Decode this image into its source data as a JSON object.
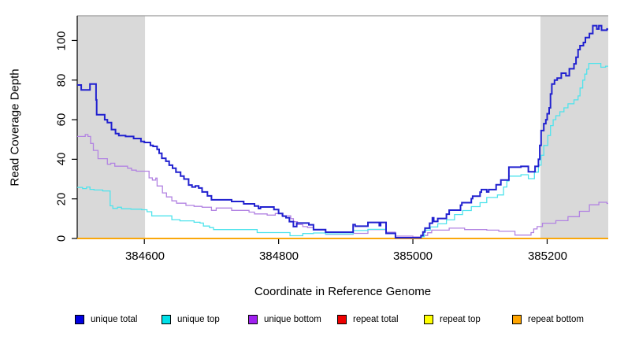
{
  "chart_data": {
    "type": "line",
    "line_style": "step-after",
    "title": "",
    "xlabel": "Coordinate in Reference Genome",
    "ylabel": "Read Coverage Depth",
    "xlim": [
      384500,
      385291
    ],
    "ylim": [
      0,
      112.5
    ],
    "grid": false,
    "x_ticks": [
      384600,
      384800,
      385000,
      385200
    ],
    "x_tick_labels": [
      "384600",
      "384800",
      "385000",
      "385200"
    ],
    "y_ticks": [
      0,
      20,
      40,
      60,
      80,
      100
    ],
    "y_tick_labels": [
      "0",
      "20",
      "40",
      "60",
      "80",
      "100"
    ],
    "colors": {
      "axis": "#000000",
      "plot_top_border": "#9a9a9a",
      "shaded_region": "#d9d9d9",
      "background": "#ffffff"
    },
    "shaded_regions": [
      {
        "x0": 384500,
        "x1": 384601
      },
      {
        "x0": 385190,
        "x1": 385291
      }
    ],
    "series": [
      {
        "name": "repeat total",
        "color": "#ee0000",
        "width": 1.4,
        "points": [
          [
            384500,
            0
          ]
        ]
      },
      {
        "name": "repeat top",
        "color": "#ffff00",
        "width": 1.4,
        "points": [
          [
            384500,
            0
          ]
        ]
      },
      {
        "name": "repeat bottom",
        "color": "#ffa500",
        "width": 1.6,
        "points": [
          [
            384500,
            0
          ]
        ]
      },
      {
        "name": "unique bottom",
        "color": "#b283e2",
        "width": 1.3,
        "points": [
          [
            384500,
            51.5
          ],
          [
            384512,
            52.5
          ],
          [
            384516,
            51.5
          ],
          [
            384520,
            48
          ],
          [
            384524,
            44.5
          ],
          [
            384531,
            40.3
          ],
          [
            384545,
            37.5
          ],
          [
            384550,
            38
          ],
          [
            384556,
            36.5
          ],
          [
            384575,
            35.5
          ],
          [
            384581,
            34.5
          ],
          [
            384588,
            34
          ],
          [
            384607,
            30.6
          ],
          [
            384612,
            29.5
          ],
          [
            384617,
            30.5
          ],
          [
            384619,
            26.5
          ],
          [
            384627,
            23
          ],
          [
            384633,
            21
          ],
          [
            384641,
            19
          ],
          [
            384648,
            17.8
          ],
          [
            384662,
            16.7
          ],
          [
            384674,
            16.2
          ],
          [
            384686,
            15.8
          ],
          [
            384700,
            14.2
          ],
          [
            384707,
            15.4
          ],
          [
            384730,
            14.2
          ],
          [
            384756,
            13.3
          ],
          [
            384764,
            12.4
          ],
          [
            384783,
            11.8
          ],
          [
            384795,
            12.6
          ],
          [
            384805,
            11.5
          ],
          [
            384818,
            10
          ],
          [
            384822,
            8.5
          ],
          [
            384828,
            7
          ],
          [
            384836,
            6
          ],
          [
            384843,
            5.5
          ],
          [
            384852,
            4.2
          ],
          [
            384870,
            2.1
          ],
          [
            384911,
            2.6
          ],
          [
            384933,
            4.5
          ],
          [
            384960,
            3.2
          ],
          [
            384974,
            1.2
          ],
          [
            385000,
            0.8
          ],
          [
            385012,
            1.5
          ],
          [
            385022,
            2.9
          ],
          [
            385028,
            4.2
          ],
          [
            385054,
            5.2
          ],
          [
            385077,
            4.5
          ],
          [
            385110,
            4.2
          ],
          [
            385128,
            3.6
          ],
          [
            385152,
            1.7
          ],
          [
            385176,
            3
          ],
          [
            385180,
            4.8
          ],
          [
            385185,
            6
          ],
          [
            385193,
            7.7
          ],
          [
            385213,
            9
          ],
          [
            385231,
            11
          ],
          [
            385248,
            13.7
          ],
          [
            385263,
            17
          ],
          [
            385277,
            18.3
          ],
          [
            385289,
            17.7
          ]
        ]
      },
      {
        "name": "unique top",
        "color": "#4fe3ec",
        "width": 1.3,
        "points": [
          [
            384500,
            25.8
          ],
          [
            384508,
            25.2
          ],
          [
            384514,
            26
          ],
          [
            384519,
            24.8
          ],
          [
            384525,
            24.5
          ],
          [
            384538,
            24
          ],
          [
            384549,
            16.5
          ],
          [
            384553,
            15.2
          ],
          [
            384560,
            15.8
          ],
          [
            384566,
            15
          ],
          [
            384580,
            14.8
          ],
          [
            384596,
            14.5
          ],
          [
            384604,
            13.5
          ],
          [
            384611,
            11.4
          ],
          [
            384641,
            9.5
          ],
          [
            384653,
            8.9
          ],
          [
            384674,
            8.2
          ],
          [
            384683,
            7.8
          ],
          [
            384688,
            6.3
          ],
          [
            384697,
            5.5
          ],
          [
            384703,
            4.5
          ],
          [
            384768,
            3
          ],
          [
            384817,
            1.4
          ],
          [
            384836,
            2.5
          ],
          [
            384852,
            2.8
          ],
          [
            384870,
            2.3
          ],
          [
            384911,
            4
          ],
          [
            384933,
            4.6
          ],
          [
            384960,
            2.5
          ],
          [
            384974,
            0.4
          ],
          [
            385012,
            0.9
          ],
          [
            385017,
            4.2
          ],
          [
            385026,
            5.8
          ],
          [
            385037,
            7.4
          ],
          [
            385050,
            9.4
          ],
          [
            385062,
            12.1
          ],
          [
            385074,
            14.1
          ],
          [
            385087,
            16.1
          ],
          [
            385100,
            18.1
          ],
          [
            385110,
            20.7
          ],
          [
            385126,
            22
          ],
          [
            385135,
            26
          ],
          [
            385140,
            29
          ],
          [
            385143,
            31.5
          ],
          [
            385161,
            32.2
          ],
          [
            385172,
            30.2
          ],
          [
            385181,
            33.5
          ],
          [
            385187,
            37
          ],
          [
            385191,
            42
          ],
          [
            385195,
            47
          ],
          [
            385201,
            52
          ],
          [
            385205,
            57
          ],
          [
            385209,
            60
          ],
          [
            385213,
            62
          ],
          [
            385219,
            64
          ],
          [
            385225,
            66
          ],
          [
            385231,
            68
          ],
          [
            385240,
            70
          ],
          [
            385246,
            72
          ],
          [
            385249,
            76
          ],
          [
            385253,
            80
          ],
          [
            385256,
            83
          ],
          [
            385259,
            85.5
          ],
          [
            385262,
            88.4
          ],
          [
            385280,
            86.5
          ],
          [
            385287,
            87
          ]
        ]
      },
      {
        "name": "unique total",
        "color": "#2121cf",
        "width": 2,
        "points": [
          [
            384500,
            77.5
          ],
          [
            384506,
            75
          ],
          [
            384519,
            78
          ],
          [
            384528,
            70
          ],
          [
            384529,
            62.5
          ],
          [
            384541,
            60
          ],
          [
            384545,
            58.5
          ],
          [
            384551,
            55
          ],
          [
            384557,
            53
          ],
          [
            384562,
            52
          ],
          [
            384572,
            51.5
          ],
          [
            384584,
            50.5
          ],
          [
            384595,
            49
          ],
          [
            384600,
            48.5
          ],
          [
            384609,
            47
          ],
          [
            384613,
            46.5
          ],
          [
            384619,
            45
          ],
          [
            384622,
            43
          ],
          [
            384626,
            40.5
          ],
          [
            384632,
            39
          ],
          [
            384637,
            37
          ],
          [
            384642,
            35.5
          ],
          [
            384647,
            33.5
          ],
          [
            384654,
            31.5
          ],
          [
            384659,
            30
          ],
          [
            384666,
            27
          ],
          [
            384671,
            26
          ],
          [
            384676,
            26.5
          ],
          [
            384681,
            25.5
          ],
          [
            384686,
            23.5
          ],
          [
            384694,
            21.5
          ],
          [
            384700,
            19.5
          ],
          [
            384730,
            18.7
          ],
          [
            384748,
            17.5
          ],
          [
            384764,
            16.4
          ],
          [
            384770,
            15.1
          ],
          [
            384773,
            15.9
          ],
          [
            384793,
            14.6
          ],
          [
            384800,
            12.6
          ],
          [
            384806,
            11.3
          ],
          [
            384811,
            10.5
          ],
          [
            384816,
            8.5
          ],
          [
            384822,
            6
          ],
          [
            384827,
            7.8
          ],
          [
            384845,
            6.9
          ],
          [
            384852,
            4.5
          ],
          [
            384870,
            3.2
          ],
          [
            384911,
            7
          ],
          [
            384914,
            6.2
          ],
          [
            384933,
            8.1
          ],
          [
            384950,
            6.5
          ],
          [
            384952,
            8.1
          ],
          [
            384960,
            2.6
          ],
          [
            384974,
            0.4
          ],
          [
            385012,
            1.5
          ],
          [
            385015,
            3.3
          ],
          [
            385018,
            5.2
          ],
          [
            385025,
            7.7
          ],
          [
            385029,
            10.4
          ],
          [
            385031,
            8.6
          ],
          [
            385037,
            10.1
          ],
          [
            385050,
            12.3
          ],
          [
            385054,
            14.3
          ],
          [
            385071,
            16.8
          ],
          [
            385073,
            18.1
          ],
          [
            385087,
            20.1
          ],
          [
            385089,
            21.4
          ],
          [
            385100,
            23.4
          ],
          [
            385102,
            24.7
          ],
          [
            385110,
            23.5
          ],
          [
            385113,
            24.7
          ],
          [
            385124,
            27.1
          ],
          [
            385131,
            29.5
          ],
          [
            385143,
            36
          ],
          [
            385161,
            36.4
          ],
          [
            385172,
            33.7
          ],
          [
            385182,
            36.4
          ],
          [
            385187,
            40
          ],
          [
            385189,
            47
          ],
          [
            385191,
            54.5
          ],
          [
            385195,
            58
          ],
          [
            385198,
            60
          ],
          [
            385200,
            63
          ],
          [
            385203,
            66
          ],
          [
            385205,
            73
          ],
          [
            385207,
            78
          ],
          [
            385211,
            80
          ],
          [
            385215,
            81
          ],
          [
            385221,
            83.5
          ],
          [
            385228,
            82.2
          ],
          [
            385233,
            85.7
          ],
          [
            385240,
            88.2
          ],
          [
            385243,
            91.5
          ],
          [
            385246,
            95.4
          ],
          [
            385249,
            97.4
          ],
          [
            385254,
            99
          ],
          [
            385257,
            101.5
          ],
          [
            385263,
            103.5
          ],
          [
            385268,
            107.5
          ],
          [
            385274,
            105.8
          ],
          [
            385277,
            107.5
          ],
          [
            385281,
            105.2
          ],
          [
            385289,
            105.8
          ]
        ]
      }
    ],
    "legend": {
      "position": "bottom",
      "items": [
        {
          "label": "unique total",
          "color": "#0000e0"
        },
        {
          "label": "unique top",
          "color": "#00e0e8"
        },
        {
          "label": "unique bottom",
          "color": "#a020f0"
        },
        {
          "label": "repeat total",
          "color": "#ee0000"
        },
        {
          "label": "repeat top",
          "color": "#ffff00"
        },
        {
          "label": "repeat bottom",
          "color": "#ffa500"
        }
      ]
    }
  }
}
